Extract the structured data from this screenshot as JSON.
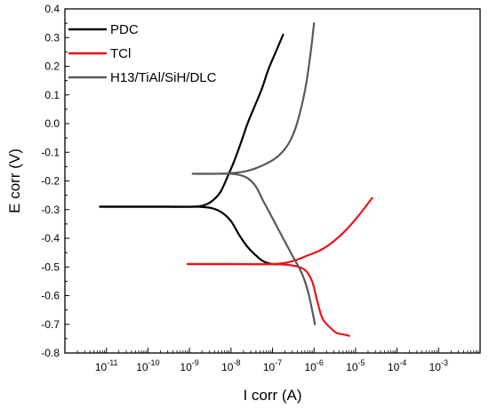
{
  "chart_data": {
    "type": "line",
    "xlabel": "I corr (A)",
    "ylabel": "E corr (V)",
    "x_scale": "log",
    "xlim": [
      1e-12,
      0.01
    ],
    "ylim": [
      -0.8,
      0.4
    ],
    "x_ticks": [
      1e-11,
      1e-10,
      1e-09,
      1e-08,
      1e-07,
      1e-06,
      1e-05,
      0.0001,
      0.001
    ],
    "x_tick_exponents": [
      "-11",
      "-10",
      "-9",
      "-8",
      "-7",
      "-6",
      "-5",
      "-4",
      "-3"
    ],
    "x_tick_base": "10",
    "y_ticks": [
      -0.8,
      -0.7,
      -0.6,
      -0.5,
      -0.4,
      -0.3,
      -0.2,
      -0.1,
      0.0,
      0.1,
      0.2,
      0.3,
      0.4
    ],
    "y_tick_labels": [
      "-0.8",
      "-0.7",
      "-0.6",
      "-0.5",
      "-0.4",
      "-0.3",
      "-0.2",
      "-0.1",
      "0.0",
      "0.1",
      "0.2",
      "0.3",
      "0.4"
    ],
    "grid": false,
    "legend_position": "top-left",
    "series": [
      {
        "name": "PDC",
        "color": "#000000",
        "segments": [
          [
            [
              7e-12,
              -0.29
            ],
            [
              5e-11,
              -0.29
            ],
            [
              3e-10,
              -0.29
            ],
            [
              1.5e-09,
              -0.29
            ],
            [
              3.5e-09,
              -0.295
            ],
            [
              6e-09,
              -0.31
            ],
            [
              1e-08,
              -0.34
            ],
            [
              1.6e-08,
              -0.39
            ],
            [
              2.5e-08,
              -0.43
            ],
            [
              4e-08,
              -0.46
            ],
            [
              6e-08,
              -0.48
            ],
            [
              1e-07,
              -0.49
            ],
            [
              1.5e-07,
              -0.49
            ]
          ],
          [
            [
              7e-12,
              -0.29
            ],
            [
              5e-11,
              -0.29
            ],
            [
              3e-10,
              -0.29
            ],
            [
              1.2e-09,
              -0.29
            ],
            [
              2.2e-09,
              -0.285
            ],
            [
              3.5e-09,
              -0.27
            ],
            [
              5.5e-09,
              -0.24
            ],
            [
              8e-09,
              -0.19
            ],
            [
              1.2e-08,
              -0.13
            ],
            [
              1.8e-08,
              -0.06
            ],
            [
              2.5e-08,
              0.0
            ],
            [
              3.7e-08,
              0.06
            ],
            [
              5.5e-08,
              0.12
            ],
            [
              8e-08,
              0.19
            ],
            [
              1.2e-07,
              0.25
            ],
            [
              1.8e-07,
              0.31
            ]
          ]
        ]
      },
      {
        "name": "TCl",
        "color": "#e8141a",
        "segments": [
          [
            [
              9e-10,
              -0.49
            ],
            [
              1e-08,
              -0.49
            ],
            [
              1e-07,
              -0.49
            ],
            [
              3e-07,
              -0.48
            ],
            [
              7e-07,
              -0.46
            ],
            [
              1.5e-06,
              -0.44
            ],
            [
              3e-06,
              -0.41
            ],
            [
              6e-06,
              -0.37
            ],
            [
              1.2e-05,
              -0.32
            ],
            [
              2.5e-05,
              -0.26
            ]
          ],
          [
            [
              9e-10,
              -0.49
            ],
            [
              1e-08,
              -0.49
            ],
            [
              1e-07,
              -0.49
            ],
            [
              3e-07,
              -0.495
            ],
            [
              6e-07,
              -0.51
            ],
            [
              9e-07,
              -0.55
            ],
            [
              1.2e-06,
              -0.62
            ],
            [
              1.6e-06,
              -0.68
            ],
            [
              2.4e-06,
              -0.71
            ],
            [
              3.5e-06,
              -0.73
            ],
            [
              5e-06,
              -0.735
            ],
            [
              7e-06,
              -0.74
            ]
          ]
        ]
      },
      {
        "name": "H13/TiAl/SiH/DLC",
        "color": "#595959",
        "segments": [
          [
            [
              1.2e-09,
              -0.175
            ],
            [
              5e-09,
              -0.175
            ],
            [
              1e-08,
              -0.175
            ],
            [
              1.5e-08,
              -0.178
            ],
            [
              2.5e-08,
              -0.19
            ],
            [
              4e-08,
              -0.22
            ],
            [
              6e-08,
              -0.27
            ],
            [
              1e-07,
              -0.33
            ],
            [
              1.8e-07,
              -0.4
            ],
            [
              3e-07,
              -0.46
            ],
            [
              5e-07,
              -0.52
            ],
            [
              7e-07,
              -0.58
            ],
            [
              9e-07,
              -0.65
            ],
            [
              1.05e-06,
              -0.7
            ]
          ],
          [
            [
              1.2e-09,
              -0.175
            ],
            [
              5e-09,
              -0.175
            ],
            [
              1.2e-08,
              -0.172
            ],
            [
              2.5e-08,
              -0.165
            ],
            [
              5e-08,
              -0.15
            ],
            [
              1.2e-07,
              -0.12
            ],
            [
              2.2e-07,
              -0.08
            ],
            [
              3.5e-07,
              -0.02
            ],
            [
              5e-07,
              0.06
            ],
            [
              6.5e-07,
              0.14
            ],
            [
              8e-07,
              0.23
            ],
            [
              9e-07,
              0.29
            ],
            [
              1e-06,
              0.35
            ]
          ]
        ]
      }
    ]
  }
}
